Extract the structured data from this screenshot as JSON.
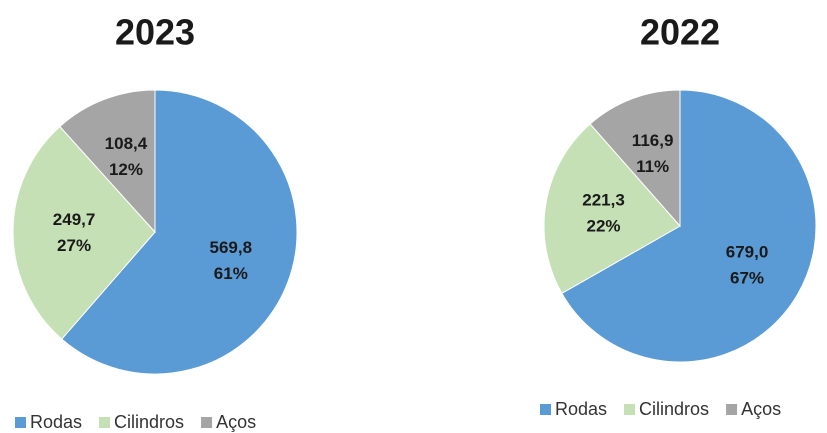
{
  "chart_data": [
    {
      "type": "pie",
      "title": "2023",
      "categories": [
        "Rodas",
        "Cilindros",
        "Aços"
      ],
      "values": [
        569.8,
        249.7,
        108.4
      ],
      "value_labels": [
        "569,8",
        "249,7",
        "108,4"
      ],
      "percents": [
        61,
        27,
        12
      ],
      "percent_labels": [
        "61%",
        "27%",
        "12%"
      ],
      "colors": [
        "#5b9bd5",
        "#c5e0b4",
        "#a5a5a5"
      ]
    },
    {
      "type": "pie",
      "title": "2022",
      "categories": [
        "Rodas",
        "Cilindros",
        "Aços"
      ],
      "values": [
        679.0,
        221.3,
        116.9
      ],
      "value_labels": [
        "679,0",
        "221,3",
        "116,9"
      ],
      "percents": [
        67,
        22,
        11
      ],
      "percent_labels": [
        "67%",
        "22%",
        "11%"
      ],
      "colors": [
        "#5b9bd5",
        "#c5e0b4",
        "#a5a5a5"
      ]
    }
  ]
}
